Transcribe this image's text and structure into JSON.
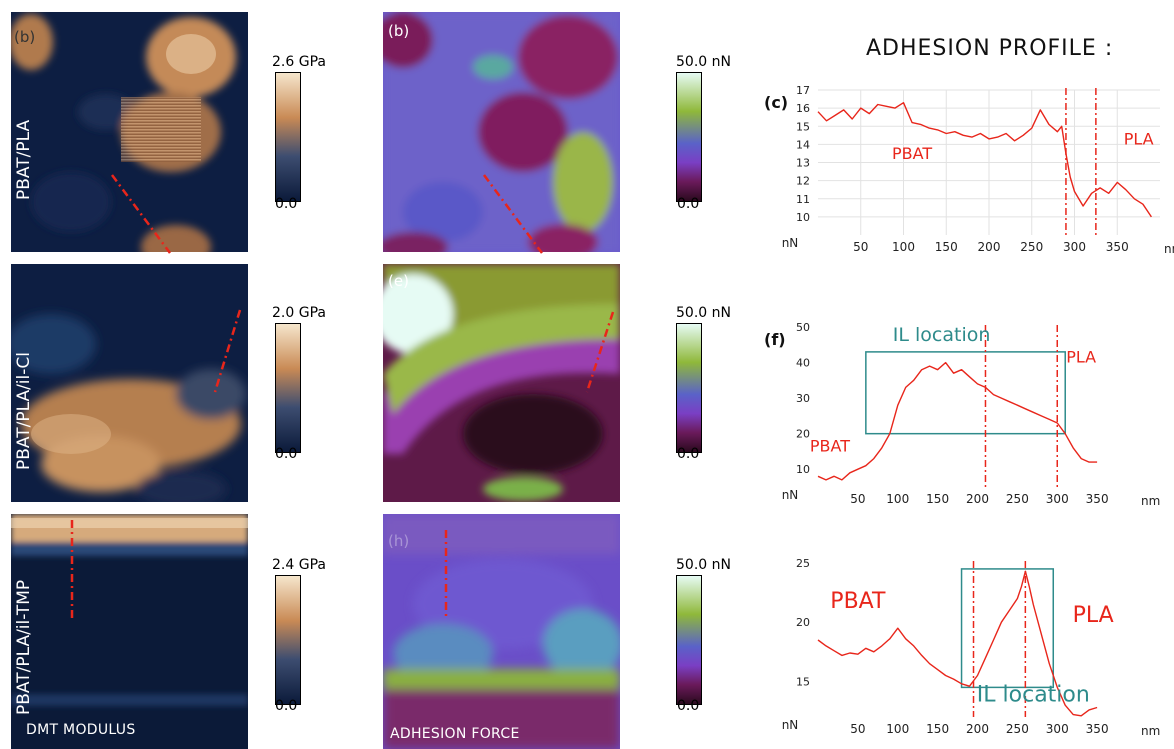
{
  "figure": {
    "rows": [
      {
        "label": "PBAT/PLA",
        "modulus_letter": "(b)",
        "adhesion_letter": "(b)",
        "modulus_max": "2.6 GPa",
        "modulus_min": "0.0",
        "adhesion_max": "50.0 nN",
        "adhesion_min": "0.0"
      },
      {
        "label": "PBAT/PLA/il-Cl",
        "modulus_letter": "",
        "adhesion_letter": "(e)",
        "modulus_max": "2.0 GPa",
        "modulus_min": "0.0",
        "adhesion_max": "50.0 nN",
        "adhesion_min": "0.0"
      },
      {
        "label": "PBAT/PLA/il-TMP",
        "modulus_letter": "",
        "adhesion_letter": "(h)",
        "modulus_max": "2.4 GPa",
        "modulus_min": "0.0",
        "adhesion_max": "50.0 nN",
        "adhesion_min": "0.0"
      }
    ],
    "bottom_labels": {
      "modulus": "DMT MODULUS",
      "adhesion": "ADHESION FORCE"
    },
    "profile_title": "ADHESION PROFILE :"
  },
  "colors": {
    "modulus_high": "#f6e6cc",
    "modulus_mid": "#c98a55",
    "modulus_low": "#0b1a3a",
    "adhesion_high": "#e6fbf4",
    "adhesion_green": "#8fb83a",
    "adhesion_purple": "#7a3fc4",
    "adhesion_low": "#2a0a1e",
    "annotation_red": "#e8261b",
    "box_teal": "#2e8b8b"
  },
  "chart_data": [
    {
      "type": "line",
      "panel_label": "(c)",
      "ylabel": "nN",
      "xlabel": "nm",
      "xlim": [
        0,
        400
      ],
      "ylim": [
        9,
        17
      ],
      "xticks": [
        50,
        100,
        150,
        200,
        250,
        300,
        350
      ],
      "yticks": [
        10,
        11,
        12,
        13,
        14,
        15,
        16,
        17
      ],
      "grid": true,
      "annotations": [
        {
          "text": "PBAT",
          "x": 110,
          "y": 13.2
        },
        {
          "text": "PLA",
          "x": 375,
          "y": 14.0
        }
      ],
      "vlines": [
        290,
        325
      ],
      "series": [
        {
          "x": [
            0,
            10,
            20,
            30,
            40,
            50,
            60,
            70,
            80,
            90,
            100,
            110,
            120,
            130,
            140,
            150,
            160,
            170,
            180,
            190,
            200,
            210,
            220,
            230,
            240,
            250,
            260,
            270,
            280,
            285,
            290,
            295,
            300,
            310,
            320,
            330,
            340,
            350,
            360,
            370,
            380,
            390
          ],
          "y": [
            15.8,
            15.3,
            15.6,
            15.9,
            15.4,
            16.0,
            15.7,
            16.2,
            16.1,
            16.0,
            16.3,
            15.2,
            15.1,
            14.9,
            14.8,
            14.6,
            14.7,
            14.5,
            14.4,
            14.6,
            14.3,
            14.4,
            14.6,
            14.2,
            14.5,
            14.9,
            15.9,
            15.1,
            14.7,
            15.0,
            13.5,
            12.2,
            11.4,
            10.6,
            11.3,
            11.6,
            11.3,
            11.9,
            11.5,
            11.0,
            10.7,
            10.0
          ]
        }
      ]
    },
    {
      "type": "line",
      "panel_label": "(f)",
      "ylabel": "nN",
      "xlabel": "nm",
      "xlim": [
        0,
        400
      ],
      "ylim": [
        5,
        50
      ],
      "xticks": [
        50,
        100,
        150,
        200,
        250,
        300,
        350
      ],
      "yticks": [
        10,
        20,
        30,
        40,
        50
      ],
      "grid": false,
      "annotations": [
        {
          "text": "IL location",
          "x": 155,
          "y": 46,
          "color": "teal"
        },
        {
          "text": "PLA",
          "x": 330,
          "y": 40
        },
        {
          "text": "PBAT",
          "x": 15,
          "y": 15
        }
      ],
      "vlines": [
        210,
        300
      ],
      "box": {
        "x0": 60,
        "x1": 310,
        "y0": 20,
        "y1": 43
      },
      "series": [
        {
          "x": [
            0,
            10,
            20,
            30,
            40,
            50,
            60,
            70,
            80,
            90,
            100,
            110,
            120,
            130,
            140,
            150,
            160,
            170,
            180,
            190,
            200,
            210,
            220,
            230,
            240,
            250,
            260,
            270,
            280,
            290,
            300,
            310,
            320,
            330,
            340,
            350
          ],
          "y": [
            8,
            7,
            8,
            7,
            9,
            10,
            11,
            13,
            16,
            20,
            28,
            33,
            35,
            38,
            39,
            38,
            40,
            37,
            38,
            36,
            34,
            33,
            31,
            30,
            29,
            28,
            27,
            26,
            25,
            24,
            23,
            20,
            16,
            13,
            12,
            12
          ]
        }
      ]
    },
    {
      "type": "line",
      "panel_label": "",
      "ylabel": "nN",
      "xlabel": "nm",
      "xlim": [
        0,
        400
      ],
      "ylim": [
        12,
        25
      ],
      "xticks": [
        50,
        100,
        150,
        200,
        250,
        300,
        350
      ],
      "yticks": [
        15,
        20,
        25
      ],
      "grid": false,
      "annotations": [
        {
          "text": "PBAT",
          "x": 50,
          "y": 21.2
        },
        {
          "text": "PLA",
          "x": 345,
          "y": 20.0
        },
        {
          "text": "IL location",
          "x": 270,
          "y": 13.3,
          "color": "teal"
        }
      ],
      "vlines": [
        195,
        260
      ],
      "box": {
        "x0": 180,
        "x1": 295,
        "y0": 14.5,
        "y1": 24.5
      },
      "series": [
        {
          "x": [
            0,
            10,
            20,
            30,
            40,
            50,
            60,
            70,
            80,
            90,
            100,
            110,
            120,
            130,
            140,
            150,
            160,
            170,
            180,
            190,
            200,
            210,
            220,
            230,
            240,
            250,
            255,
            260,
            265,
            270,
            280,
            290,
            300,
            310,
            320,
            330,
            340,
            350
          ],
          "y": [
            18.5,
            18.0,
            17.6,
            17.2,
            17.4,
            17.3,
            17.8,
            17.5,
            18.0,
            18.6,
            19.5,
            18.6,
            18.0,
            17.2,
            16.5,
            16.0,
            15.5,
            15.2,
            14.8,
            14.6,
            15.5,
            17.0,
            18.5,
            20.0,
            21.0,
            22.0,
            23.0,
            24.3,
            23.0,
            21.5,
            19.0,
            16.5,
            14.5,
            13.0,
            12.2,
            12.1,
            12.6,
            12.8
          ]
        }
      ]
    }
  ]
}
